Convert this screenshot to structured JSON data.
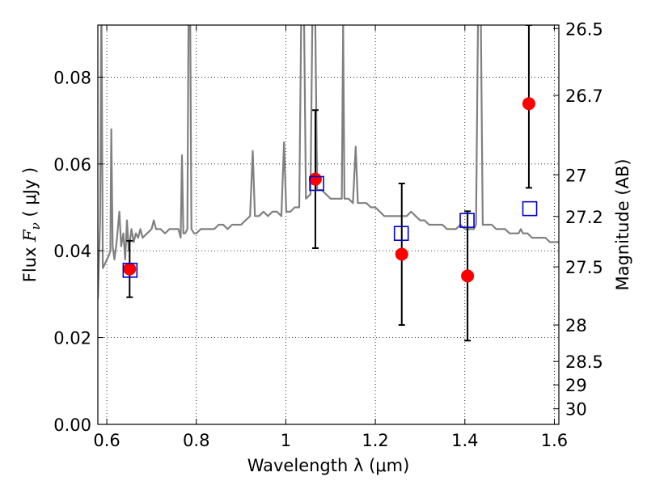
{
  "chart_data": {
    "type": "scatter",
    "xlabel": "Wavelength  λ (μm)",
    "ylabel": {
      "prefix": "Flux  ",
      "symbol": "F",
      "sub": "ν",
      "unit": "  ( μJy )"
    },
    "ylabel_right": "Magnitude (AB)",
    "xlim": [
      0.58,
      1.61
    ],
    "ylim": [
      0,
      0.092
    ],
    "grid": true,
    "x_ticks": [
      {
        "value": 0.6,
        "label": "0.6"
      },
      {
        "value": 0.8,
        "label": "0.8"
      },
      {
        "value": 1.0,
        "label": "1"
      },
      {
        "value": 1.2,
        "label": "1.2"
      },
      {
        "value": 1.4,
        "label": "1.4"
      },
      {
        "value": 1.6,
        "label": "1.6"
      }
    ],
    "y_ticks": [
      {
        "value": 0.0,
        "label": "0.00"
      },
      {
        "value": 0.02,
        "label": "0.02"
      },
      {
        "value": 0.04,
        "label": "0.04"
      },
      {
        "value": 0.06,
        "label": "0.06"
      },
      {
        "value": 0.08,
        "label": "0.08"
      }
    ],
    "right_ticks": [
      {
        "flux": 0.0912,
        "label": "26.5"
      },
      {
        "flux": 0.0758,
        "label": "26.7"
      },
      {
        "flux": 0.0575,
        "label": "27"
      },
      {
        "flux": 0.0479,
        "label": "27.2"
      },
      {
        "flux": 0.0363,
        "label": "27.5"
      },
      {
        "flux": 0.0229,
        "label": "28"
      },
      {
        "flux": 0.0145,
        "label": "28.5"
      },
      {
        "flux": 0.0091,
        "label": "29"
      },
      {
        "flux": 0.0036,
        "label": "30"
      }
    ],
    "series": [
      {
        "type": "line",
        "color": "#808080",
        "points": [
          [
            0.58,
            0.029
          ],
          [
            0.585,
            0.047
          ],
          [
            0.588,
            0.1
          ],
          [
            0.591,
            0.036
          ],
          [
            0.596,
            0.037
          ],
          [
            0.6,
            0.038
          ],
          [
            0.605,
            0.039
          ],
          [
            0.608,
            0.04
          ],
          [
            0.61,
            0.068
          ],
          [
            0.613,
            0.041
          ],
          [
            0.617,
            0.038
          ],
          [
            0.622,
            0.042
          ],
          [
            0.628,
            0.049
          ],
          [
            0.632,
            0.041
          ],
          [
            0.637,
            0.044
          ],
          [
            0.641,
            0.038
          ],
          [
            0.645,
            0.047
          ],
          [
            0.649,
            0.04
          ],
          [
            0.655,
            0.045
          ],
          [
            0.66,
            0.042
          ],
          [
            0.665,
            0.044
          ],
          [
            0.67,
            0.043
          ],
          [
            0.675,
            0.045
          ],
          [
            0.68,
            0.043
          ],
          [
            0.69,
            0.044
          ],
          [
            0.7,
            0.045
          ],
          [
            0.705,
            0.047
          ],
          [
            0.71,
            0.045
          ],
          [
            0.72,
            0.045
          ],
          [
            0.73,
            0.044
          ],
          [
            0.74,
            0.045
          ],
          [
            0.75,
            0.045
          ],
          [
            0.76,
            0.045
          ],
          [
            0.765,
            0.043
          ],
          [
            0.768,
            0.062
          ],
          [
            0.771,
            0.044
          ],
          [
            0.775,
            0.044
          ],
          [
            0.78,
            0.045
          ],
          [
            0.783,
            0.1
          ],
          [
            0.786,
            0.1
          ],
          [
            0.789,
            0.045
          ],
          [
            0.795,
            0.044
          ],
          [
            0.8,
            0.044
          ],
          [
            0.81,
            0.045
          ],
          [
            0.82,
            0.045
          ],
          [
            0.83,
            0.045
          ],
          [
            0.84,
            0.045
          ],
          [
            0.85,
            0.046
          ],
          [
            0.86,
            0.046
          ],
          [
            0.87,
            0.045
          ],
          [
            0.88,
            0.046
          ],
          [
            0.89,
            0.046
          ],
          [
            0.9,
            0.046
          ],
          [
            0.91,
            0.047
          ],
          [
            0.92,
            0.048
          ],
          [
            0.926,
            0.063
          ],
          [
            0.931,
            0.048
          ],
          [
            0.94,
            0.048
          ],
          [
            0.95,
            0.049
          ],
          [
            0.96,
            0.048
          ],
          [
            0.97,
            0.049
          ],
          [
            0.98,
            0.049
          ],
          [
            0.99,
            0.048
          ],
          [
            0.996,
            0.065
          ],
          [
            1.001,
            0.049
          ],
          [
            1.01,
            0.049
          ],
          [
            1.02,
            0.05
          ],
          [
            1.03,
            0.05
          ],
          [
            1.035,
            0.1
          ],
          [
            1.04,
            0.1
          ],
          [
            1.045,
            0.052
          ],
          [
            1.055,
            0.053
          ],
          [
            1.06,
            0.1
          ],
          [
            1.065,
            0.1
          ],
          [
            1.07,
            0.054
          ],
          [
            1.08,
            0.054
          ],
          [
            1.09,
            0.053
          ],
          [
            1.1,
            0.052
          ],
          [
            1.11,
            0.052
          ],
          [
            1.12,
            0.052
          ],
          [
            1.125,
            0.052
          ],
          [
            1.128,
            0.092
          ],
          [
            1.131,
            0.052
          ],
          [
            1.14,
            0.052
          ],
          [
            1.15,
            0.051
          ],
          [
            1.156,
            0.064
          ],
          [
            1.161,
            0.051
          ],
          [
            1.17,
            0.051
          ],
          [
            1.18,
            0.051
          ],
          [
            1.19,
            0.05
          ],
          [
            1.2,
            0.05
          ],
          [
            1.21,
            0.049
          ],
          [
            1.22,
            0.048
          ],
          [
            1.23,
            0.048
          ],
          [
            1.24,
            0.048
          ],
          [
            1.25,
            0.048
          ],
          [
            1.26,
            0.048
          ],
          [
            1.27,
            0.048
          ],
          [
            1.28,
            0.049
          ],
          [
            1.29,
            0.048
          ],
          [
            1.3,
            0.047
          ],
          [
            1.31,
            0.047
          ],
          [
            1.32,
            0.046
          ],
          [
            1.33,
            0.046
          ],
          [
            1.34,
            0.046
          ],
          [
            1.35,
            0.046
          ],
          [
            1.36,
            0.045
          ],
          [
            1.37,
            0.045
          ],
          [
            1.38,
            0.045
          ],
          [
            1.39,
            0.046
          ],
          [
            1.4,
            0.045
          ],
          [
            1.41,
            0.045
          ],
          [
            1.42,
            0.045
          ],
          [
            1.425,
            0.046
          ],
          [
            1.43,
            0.1
          ],
          [
            1.435,
            0.1
          ],
          [
            1.44,
            0.046
          ],
          [
            1.45,
            0.046
          ],
          [
            1.46,
            0.046
          ],
          [
            1.47,
            0.045
          ],
          [
            1.48,
            0.045
          ],
          [
            1.49,
            0.045
          ],
          [
            1.5,
            0.044
          ],
          [
            1.51,
            0.044
          ],
          [
            1.52,
            0.044
          ],
          [
            1.525,
            0.045
          ],
          [
            1.53,
            0.044
          ],
          [
            1.54,
            0.044
          ],
          [
            1.55,
            0.043
          ],
          [
            1.56,
            0.043
          ],
          [
            1.57,
            0.043
          ],
          [
            1.58,
            0.043
          ],
          [
            1.59,
            0.042
          ],
          [
            1.6,
            0.042
          ],
          [
            1.61,
            0.042
          ]
        ]
      },
      {
        "type": "scatter",
        "marker": "circle",
        "color": "#ff0000",
        "points": [
          {
            "x": 0.651,
            "y": 0.0358,
            "err_lo": 0.0293,
            "err_hi": 0.0423
          },
          {
            "x": 1.066,
            "y": 0.0565,
            "err_lo": 0.0406,
            "err_hi": 0.0724
          },
          {
            "x": 1.259,
            "y": 0.0392,
            "err_lo": 0.0229,
            "err_hi": 0.0555
          },
          {
            "x": 1.406,
            "y": 0.0342,
            "err_lo": 0.0193,
            "err_hi": 0.0491
          },
          {
            "x": 1.543,
            "y": 0.0739,
            "err_lo": 0.0545,
            "err_hi": 0.092
          }
        ]
      },
      {
        "type": "scatter",
        "marker": "square-open",
        "color": "#0000cc",
        "points": [
          {
            "x": 0.652,
            "y": 0.0355
          },
          {
            "x": 1.069,
            "y": 0.0555
          },
          {
            "x": 1.258,
            "y": 0.044
          },
          {
            "x": 1.405,
            "y": 0.047
          },
          {
            "x": 1.545,
            "y": 0.0497
          }
        ]
      }
    ]
  }
}
